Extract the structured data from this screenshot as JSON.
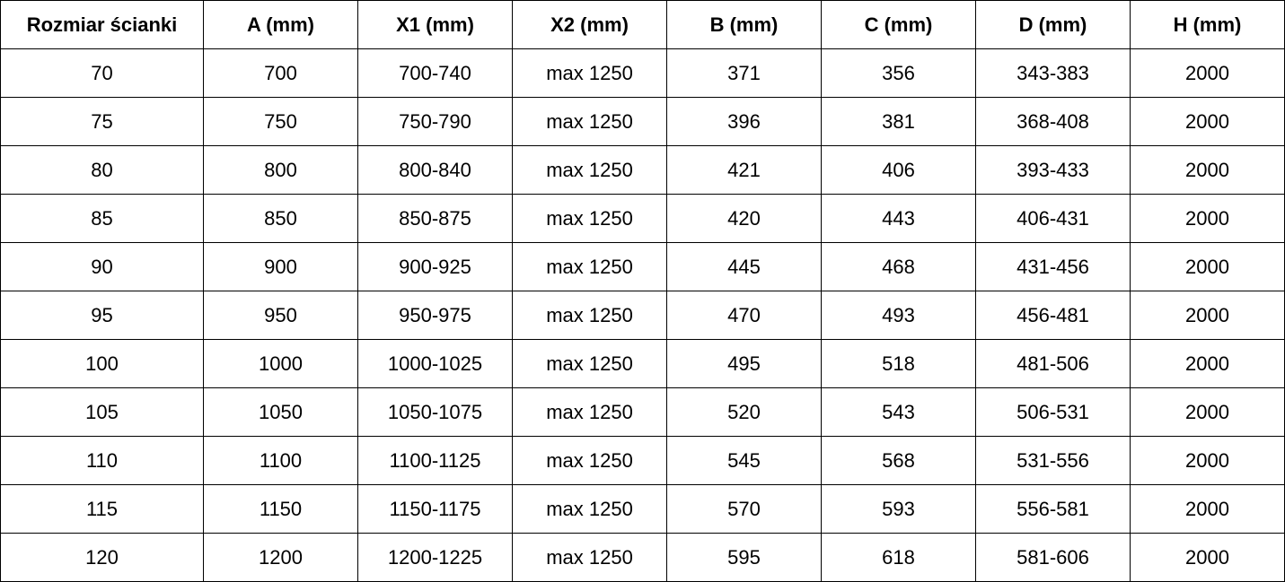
{
  "table": {
    "header": [
      "Rozmiar ścianki",
      "A (mm)",
      "X1 (mm)",
      "X2 (mm)",
      "B (mm)",
      "C (mm)",
      "D (mm)",
      "H (mm)"
    ],
    "rows": [
      [
        "70",
        "700",
        "700-740",
        "max 1250",
        "371",
        "356",
        "343-383",
        "2000"
      ],
      [
        "75",
        "750",
        "750-790",
        "max 1250",
        "396",
        "381",
        "368-408",
        "2000"
      ],
      [
        "80",
        "800",
        "800-840",
        "max 1250",
        "421",
        "406",
        "393-433",
        "2000"
      ],
      [
        "85",
        "850",
        "850-875",
        "max 1250",
        "420",
        "443",
        "406-431",
        "2000"
      ],
      [
        "90",
        "900",
        "900-925",
        "max 1250",
        "445",
        "468",
        "431-456",
        "2000"
      ],
      [
        "95",
        "950",
        "950-975",
        "max 1250",
        "470",
        "493",
        "456-481",
        "2000"
      ],
      [
        "100",
        "1000",
        "1000-1025",
        "max 1250",
        "495",
        "518",
        "481-506",
        "2000"
      ],
      [
        "105",
        "1050",
        "1050-1075",
        "max 1250",
        "520",
        "543",
        "506-531",
        "2000"
      ],
      [
        "110",
        "1100",
        "1100-1125",
        "max 1250",
        "545",
        "568",
        "531-556",
        "2000"
      ],
      [
        "115",
        "1150",
        "1150-1175",
        "max 1250",
        "570",
        "593",
        "556-581",
        "2000"
      ],
      [
        "120",
        "1200",
        "1200-1225",
        "max 1250",
        "595",
        "618",
        "581-606",
        "2000"
      ]
    ]
  }
}
